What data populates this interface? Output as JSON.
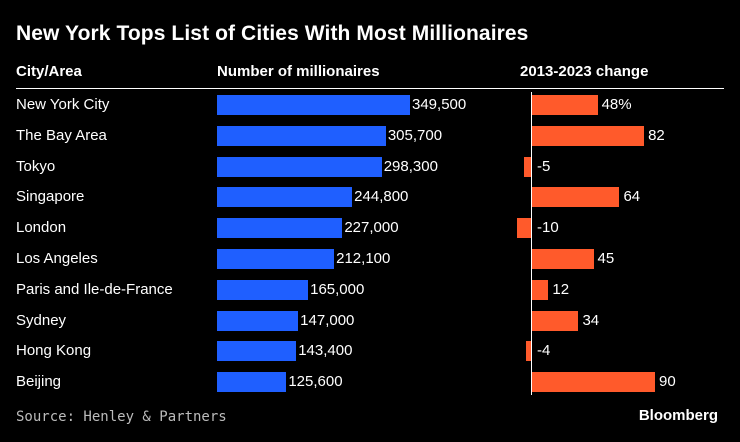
{
  "title": "New York Tops List of Cities With Most Millionaires",
  "headers": {
    "city": "City/Area",
    "millionaires": "Number of millionaires",
    "change": "2013-2023 change"
  },
  "footer": {
    "source": "Source: Henley & Partners",
    "brand": "Bloomberg"
  },
  "colors": {
    "background": "#000000",
    "millionaires_bar": "#1f5fff",
    "change_bar": "#ff5a2b",
    "text": "#ffffff"
  },
  "chart_data": {
    "type": "bar",
    "title": "New York Tops List of Cities With Most Millionaires",
    "categories": [
      "New York City",
      "The Bay Area",
      "Tokyo",
      "Singapore",
      "London",
      "Los Angeles",
      "Paris and Ile-de-France",
      "Sydney",
      "Hong Kong",
      "Beijing"
    ],
    "series": [
      {
        "name": "Number of millionaires",
        "values": [
          349500,
          305700,
          298300,
          244800,
          227000,
          212100,
          165000,
          147000,
          143400,
          125600
        ],
        "labels": [
          "349,500",
          "305,700",
          "298,300",
          "244,800",
          "227,000",
          "212,100",
          "165,000",
          "147,000",
          "143,400",
          "125,600"
        ]
      },
      {
        "name": "2013-2023 change",
        "values": [
          48,
          82,
          -5,
          64,
          -10,
          45,
          12,
          34,
          -4,
          90
        ],
        "labels": [
          "48%",
          "82",
          "-5",
          "64",
          "-10",
          "45",
          "12",
          "34",
          "-4",
          "90"
        ],
        "unit": "%"
      }
    ],
    "source": "Source: Henley & Partners"
  }
}
